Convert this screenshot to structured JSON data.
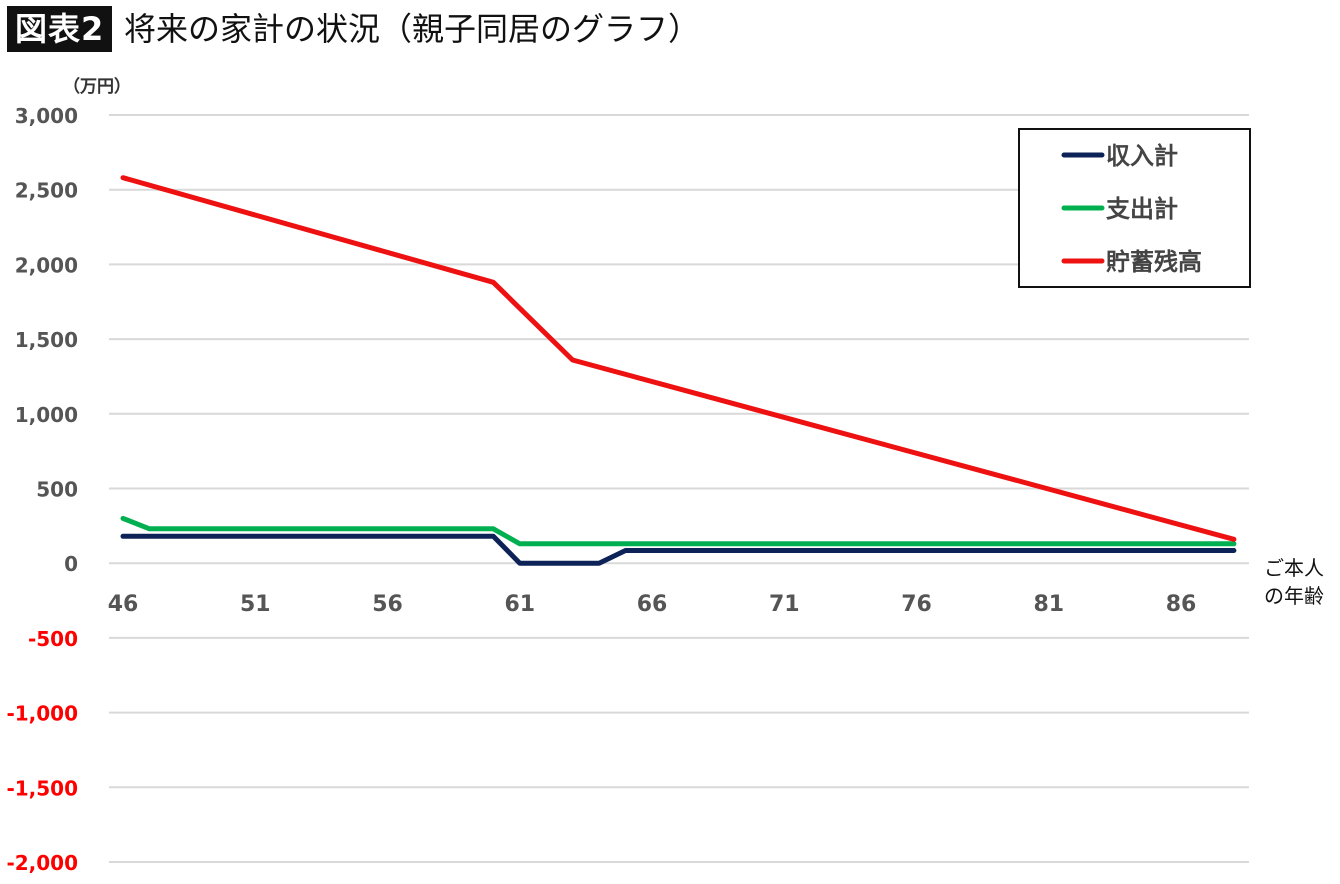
{
  "header": {
    "badge": "図表2",
    "title": "将来の家計の状況（親子同居のグラフ）"
  },
  "chart_data": {
    "type": "line",
    "unit_label": "（万円）",
    "x_axis_label_line1": "ご本人",
    "x_axis_label_line2": "の年齢",
    "x_ticks": [
      "46",
      "51",
      "56",
      "61",
      "66",
      "71",
      "76",
      "81",
      "86"
    ],
    "y_ticks": [
      "3,000",
      "2,500",
      "2,000",
      "1,500",
      "1,000",
      "500",
      "0",
      "-500",
      "-1,000",
      "-1,500",
      "-2,000"
    ],
    "ylim": [
      -2000,
      3000
    ],
    "xlim": [
      46,
      88
    ],
    "grid": true,
    "legend_position": "top-right",
    "colors": {
      "positive_tick": "#555555",
      "negative_tick": "#ff0000",
      "grid": "#d9d9d9"
    },
    "series": [
      {
        "name": "収入計",
        "color": "#0d2257",
        "x": [
          46,
          60,
          61,
          64,
          65,
          88
        ],
        "y": [
          180,
          180,
          0,
          0,
          85,
          85
        ]
      },
      {
        "name": "支出計",
        "color": "#00b050",
        "x": [
          46,
          47,
          60,
          61,
          88
        ],
        "y": [
          300,
          230,
          230,
          130,
          130
        ]
      },
      {
        "name": "貯蓄残高",
        "color": "#ee1111",
        "x": [
          46,
          60,
          63,
          88
        ],
        "y": [
          2580,
          1880,
          1360,
          160
        ]
      }
    ]
  }
}
